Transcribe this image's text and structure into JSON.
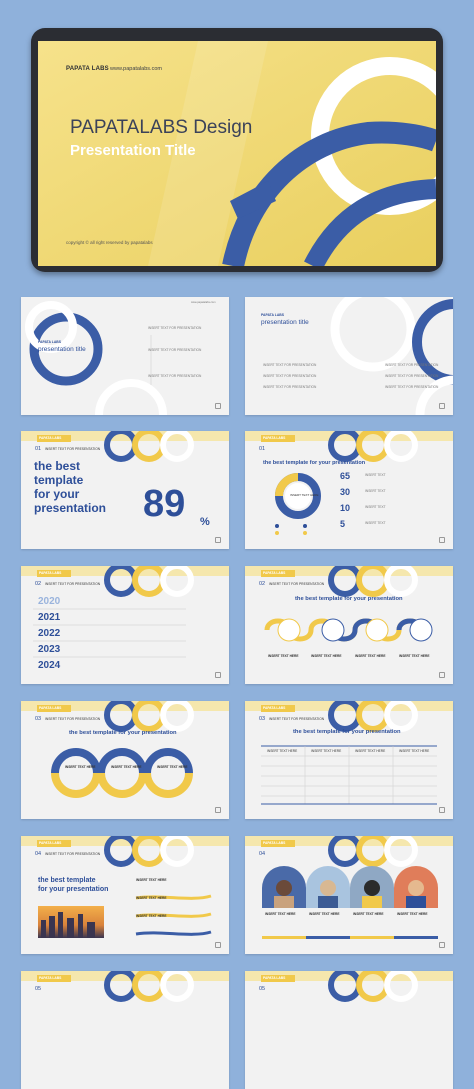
{
  "colors": {
    "background": "#8fb1db",
    "accent_blue": "#2e4f99",
    "accent_yellow": "#f1c94a",
    "slide_bg": "#f2f2f2"
  },
  "cover": {
    "logo": "PAPATA LABS",
    "url": "www.papatalabs.com",
    "title": "PAPATALABS Design",
    "subtitle": "Presentation Title",
    "copyright": "copyright © all right reserved by papatalabs"
  },
  "slide1": {
    "brand": "PAPATA LABS",
    "title": "presentation title",
    "items": [
      "INSERT TEXT FOR PRESENTATION",
      "INSERT TEXT FOR PRESENTATION",
      "INSERT TEXT FOR PRESENTATION"
    ]
  },
  "slide2": {
    "brand": "PAPATA LABS",
    "title": "presentation title",
    "items": [
      "INSERT TEXT FOR PRESENTATION",
      "INSERT TEXT FOR PRESENTATION",
      "INSERT TEXT FOR PRESENTATION",
      "INSERT TEXT FOR PRESENTATION",
      "INSERT TEXT FOR PRESENTATION",
      "INSERT TEXT FOR PRESENTATION"
    ]
  },
  "slide3": {
    "badge": "PAPATA LABS",
    "num": "01",
    "header": "INSERT TEXT FOR PRESENTATION",
    "heading_lines": [
      "the best",
      "template",
      "for your",
      "presentation"
    ],
    "big": "89",
    "unit": "%"
  },
  "slide4": {
    "badge": "PAPATA LABS",
    "num": "01",
    "title": "the best template for your presentation",
    "donut_label": "INSERT TEXT HERE",
    "percents": [
      "65",
      "30",
      "10",
      "5"
    ],
    "legend": [
      "INSERT TEXT",
      "INSERT TEXT",
      "INSERT TEXT",
      "INSERT TEXT"
    ]
  },
  "slide5": {
    "badge": "PAPATA LABS",
    "num": "02",
    "header": "INSERT TEXT FOR PRESENTATION",
    "years": [
      "2020",
      "2021",
      "2022",
      "2023",
      "2024"
    ]
  },
  "slide6": {
    "badge": "PAPATA LABS",
    "num": "02",
    "header": "INSERT TEXT FOR PRESENTATION",
    "title": "the best template for your presentation",
    "labels": [
      "INSERT TEXT HERE",
      "INSERT TEXT HERE",
      "INSERT TEXT HERE",
      "INSERT TEXT HERE"
    ]
  },
  "slide7": {
    "badge": "PAPATA LABS",
    "num": "03",
    "header": "INSERT TEXT FOR PRESENTATION",
    "title": "the best template for your presentation",
    "labels": [
      "INSERT TEXT HERE",
      "INSERT TEXT HERE",
      "INSERT TEXT HERE"
    ]
  },
  "slide8": {
    "badge": "PAPATA LABS",
    "num": "03",
    "header": "INSERT TEXT FOR PRESENTATION",
    "title": "the best template for your presentation",
    "cols": [
      "INSERT TEXT HERE",
      "INSERT TEXT HERE",
      "INSERT TEXT HERE",
      "INSERT TEXT HERE"
    ]
  },
  "slide9": {
    "badge": "PAPATA LABS",
    "num": "04",
    "header": "INSERT TEXT FOR PRESENTATION",
    "heading_lines": [
      "the best template",
      "for your presentation"
    ],
    "labels": [
      "INSERT TEXT HERE",
      "INSERT TEXT HERE",
      "INSERT TEXT HERE"
    ]
  },
  "slide10": {
    "badge": "PAPATA LABS",
    "num": "04",
    "labels": [
      "INSERT TEXT HERE",
      "INSERT TEXT HERE",
      "INSERT TEXT HERE",
      "INSERT TEXT HERE"
    ]
  },
  "slide11": {
    "badge": "PAPATA LABS",
    "num": "05"
  },
  "slide12": {
    "badge": "PAPATA LABS",
    "num": "05"
  }
}
